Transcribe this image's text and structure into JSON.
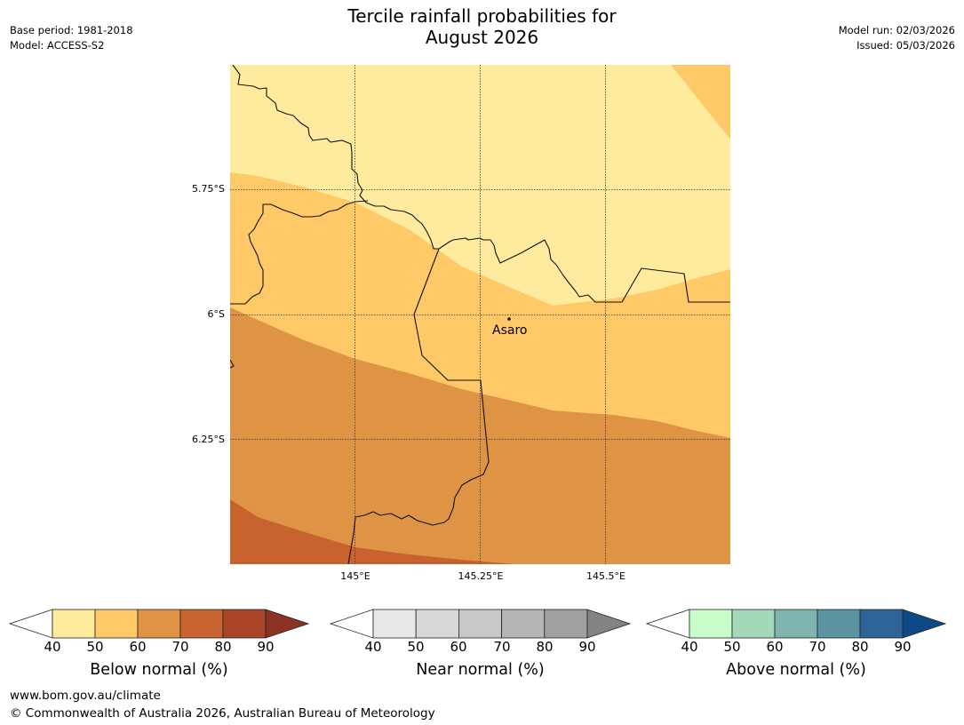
{
  "title_line1": "Tercile rainfall probabilities for",
  "title_line2": "August 2026",
  "meta_left": {
    "base_period": "Base period: 1981-2018",
    "model": "Model: ACCESS-S2"
  },
  "meta_right": {
    "model_run": "Model run: 02/03/2026",
    "issued": "Issued: 05/03/2026"
  },
  "map": {
    "lat_labels": [
      "5.75°S",
      "6°S",
      "6.25°S"
    ],
    "lon_labels": [
      "145°E",
      "145.25°E",
      "145.5°E"
    ],
    "place": {
      "name": "Asaro",
      "lat": -6.01,
      "lon": 145.3
    },
    "extent": {
      "lon_min": 144.75,
      "lon_max": 145.75,
      "lat_min": -6.5,
      "lat_max": -5.5
    },
    "band_colors": [
      "#feeb9e",
      "#fec966",
      "#df9345",
      "#c8632f"
    ]
  },
  "colorbars": [
    {
      "name": "below",
      "title": "Below normal (%)",
      "ticks": [
        "40",
        "50",
        "60",
        "70",
        "80",
        "90"
      ],
      "colors": [
        "#feeb9e",
        "#fec966",
        "#df9345",
        "#c8632f",
        "#ab4527"
      ],
      "extend_color": "#8a3322"
    },
    {
      "name": "near",
      "title": "Near normal (%)",
      "ticks": [
        "40",
        "50",
        "60",
        "70",
        "80",
        "90"
      ],
      "colors": [
        "#e8e8e8",
        "#d8d8d8",
        "#c8c8c8",
        "#b5b5b5",
        "#a0a0a0"
      ],
      "extend_color": "#838383"
    },
    {
      "name": "above",
      "title": "Above normal (%)",
      "ticks": [
        "40",
        "50",
        "60",
        "70",
        "80",
        "90"
      ],
      "colors": [
        "#c9fdca",
        "#a3d8b9",
        "#80b5af",
        "#5b93a0",
        "#2e6398"
      ],
      "extend_color": "#0d4a85"
    }
  ],
  "footer": {
    "url": "www.bom.gov.au/climate",
    "copyright": "© Commonwealth of Australia 2026, Australian Bureau of Meteorology"
  }
}
